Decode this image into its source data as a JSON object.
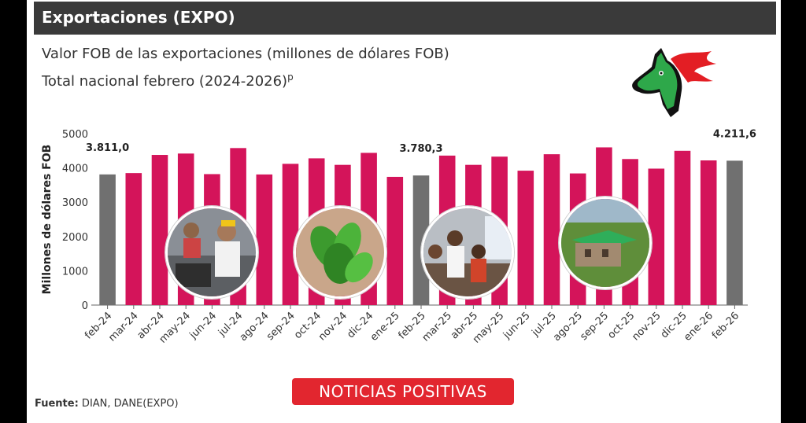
{
  "header": {
    "title": "Exportaciones (EXPO)"
  },
  "subtitle": {
    "line1": "Valor FOB de las exportaciones (millones de dólares FOB)",
    "line2": "Total nacional febrero (2024-2026)",
    "line2_sup": "p"
  },
  "source": {
    "label": "Fuente:",
    "text": " DIAN, DANE(EXPO)"
  },
  "banner": {
    "text": "NOTICIAS POSITIVAS"
  },
  "colors": {
    "bar": "#d4145a",
    "highlight": "#707070",
    "header": "#3a3a3a",
    "banner": "#e2262f"
  },
  "chart_data": {
    "type": "bar",
    "ylabel": "Millones de dólares FOB",
    "ylim": [
      0,
      5000
    ],
    "yticks": [
      0,
      1000,
      2000,
      3000,
      4000,
      5000
    ],
    "categories": [
      "feb-24",
      "mar-24",
      "abr-24",
      "may-24",
      "jun-24",
      "jul-24",
      "ago-24",
      "sep-24",
      "oct-24",
      "nov-24",
      "dic-24",
      "ene-25",
      "feb-25",
      "mar-25",
      "abr-25",
      "may-25",
      "jun-25",
      "jul-25",
      "ago-25",
      "sep-25",
      "oct-25",
      "nov-25",
      "dic-25",
      "ene-26",
      "feb-26"
    ],
    "values": [
      3811.0,
      3850,
      4380,
      4420,
      3820,
      4580,
      3810,
      4120,
      4280,
      4090,
      4440,
      3740,
      3780.3,
      4360,
      4090,
      4330,
      3920,
      4400,
      3840,
      4600,
      4260,
      3980,
      4500,
      4220,
      4211.6
    ],
    "highlighted": [
      "feb-24",
      "feb-25",
      "feb-26"
    ],
    "data_labels": [
      {
        "category": "feb-24",
        "text": "3.811,0"
      },
      {
        "category": "feb-25",
        "text": "3.780,3"
      },
      {
        "category": "feb-26",
        "text": "4.211,6"
      }
    ],
    "grid": false,
    "legend": "none"
  }
}
